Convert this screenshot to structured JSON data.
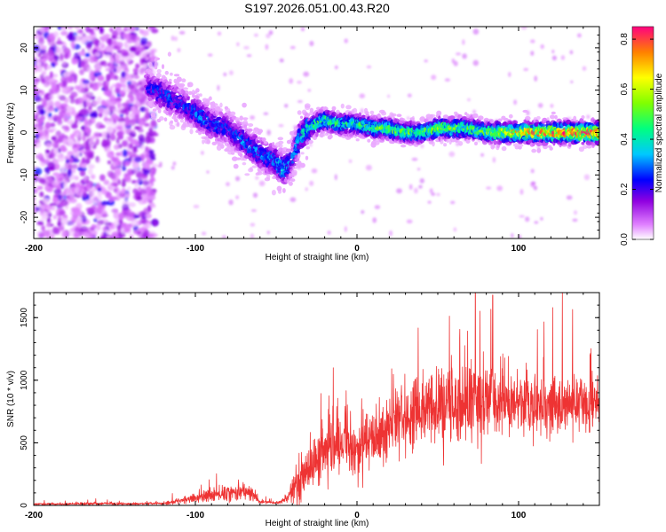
{
  "title": "S197.2026.051.00.43.R20",
  "chart_data": [
    {
      "type": "heatmap",
      "name": "spectrogram",
      "xlabel": "Height of straight line (km)",
      "ylabel": "Frequency (Hz)",
      "xlim": [
        -200,
        150
      ],
      "ylim": [
        -25,
        25
      ],
      "xticks": [
        -200,
        -100,
        0,
        100
      ],
      "yticks": [
        -20,
        -10,
        0,
        10,
        20
      ],
      "ridge": {
        "x": [
          -130,
          -120,
          -110,
          -100,
          -90,
          -80,
          -70,
          -60,
          -50,
          -45,
          -40,
          -35,
          -30,
          -20,
          -10,
          0,
          10,
          20,
          30,
          40,
          50,
          60,
          70,
          80,
          90,
          100,
          110,
          120,
          130,
          140,
          150
        ],
        "y": [
          11,
          9,
          7,
          5,
          2,
          1,
          -2,
          -5,
          -7,
          -9,
          -6,
          -1,
          1,
          3,
          2,
          2,
          1,
          1,
          0,
          0,
          1,
          1,
          1,
          0,
          0,
          0,
          0,
          0,
          0,
          0,
          0
        ],
        "amplitude": [
          0.2,
          0.3,
          0.25,
          0.3,
          0.3,
          0.25,
          0.3,
          0.3,
          0.35,
          0.4,
          0.3,
          0.35,
          0.45,
          0.5,
          0.45,
          0.45,
          0.5,
          0.55,
          0.5,
          0.5,
          0.55,
          0.55,
          0.5,
          0.55,
          0.6,
          0.7,
          0.75,
          0.8,
          0.8,
          0.8,
          0.85
        ]
      },
      "colorbar": {
        "label": "Normalized spectral amplitude",
        "range": [
          0.0,
          0.85
        ],
        "ticks": [
          0.0,
          0.2,
          0.4,
          0.6,
          0.8
        ],
        "tick_labels": [
          "0.0",
          "0.2",
          "0.4",
          "0.6",
          "0.8"
        ]
      }
    },
    {
      "type": "line",
      "name": "snr",
      "xlabel": "Height of straight line (km)",
      "ylabel": "SNR (10 * v/v)",
      "xlim": [
        -200,
        150
      ],
      "ylim": [
        0,
        1700
      ],
      "xticks": [
        -200,
        -100,
        0,
        100
      ],
      "yticks": [
        0,
        500,
        1000,
        1500
      ],
      "color": "#ee3333",
      "envelope": {
        "x": [
          -205,
          -180,
          -160,
          -140,
          -120,
          -115,
          -100,
          -90,
          -80,
          -70,
          -65,
          -60,
          -50,
          -45,
          -40,
          -35,
          -30,
          -25,
          -20,
          -15,
          -10,
          -5,
          0,
          10,
          20,
          25,
          30,
          40,
          50,
          60,
          70,
          80,
          90,
          100,
          110,
          120,
          130,
          140,
          150
        ],
        "mean": [
          10,
          12,
          15,
          12,
          15,
          25,
          60,
          80,
          100,
          110,
          90,
          30,
          20,
          40,
          100,
          220,
          300,
          350,
          420,
          450,
          450,
          430,
          460,
          520,
          600,
          700,
          720,
          750,
          780,
          800,
          820,
          820,
          830,
          820,
          810,
          800,
          800,
          810,
          800
        ],
        "spread": [
          8,
          10,
          12,
          10,
          10,
          18,
          40,
          60,
          70,
          80,
          70,
          20,
          15,
          30,
          90,
          200,
          220,
          230,
          250,
          260,
          260,
          250,
          250,
          260,
          280,
          300,
          310,
          320,
          330,
          350,
          360,
          370,
          330,
          280,
          260,
          250,
          240,
          240,
          230
        ]
      },
      "peak": {
        "x": 84,
        "y": 1680
      }
    }
  ]
}
